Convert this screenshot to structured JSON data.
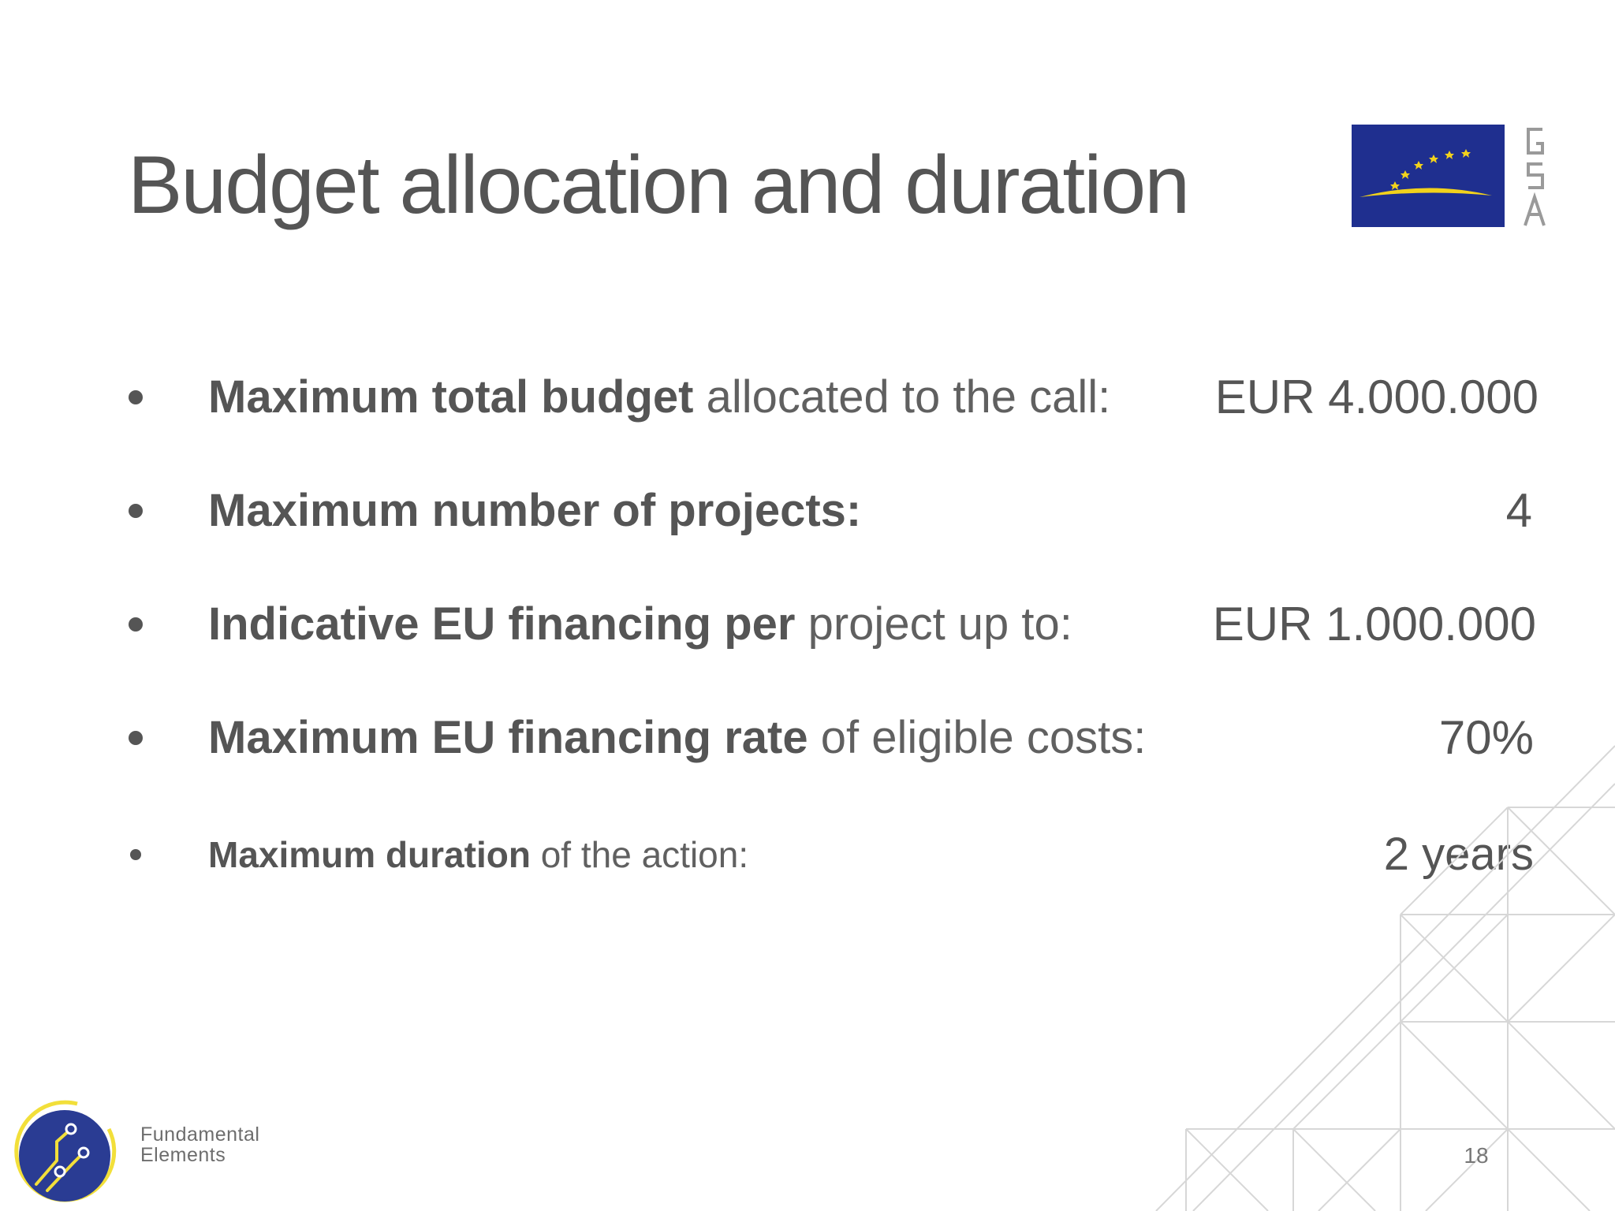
{
  "slide": {
    "title": "Budget allocation and duration",
    "page_number": "18"
  },
  "bullets": [
    {
      "label_bold": "Maximum total budget",
      "label_rest": " allocated to the call:",
      "value": "EUR 4.000.000"
    },
    {
      "label_bold": "Maximum number of projects:",
      "label_rest": "",
      "value": "4"
    },
    {
      "label_bold": "Indicative EU financing per",
      "label_rest": " project up to:",
      "value": "EUR 1.000.000"
    },
    {
      "label_bold": "Maximum EU financing rate",
      "label_rest": " of eligible costs:",
      "value": "70%"
    },
    {
      "label_bold": "Maximum duration",
      "label_rest": " of the action:",
      "value": "2 years"
    }
  ],
  "logos": {
    "gsa": {
      "icon": "gsa-logo-icon",
      "letters": [
        "G",
        "S",
        "A"
      ],
      "flag_color": "#1f2f8f",
      "star_color": "#f2d21c"
    },
    "fundamental_elements": {
      "icon": "fundamental-elements-logo-icon",
      "line1": "Fundamental",
      "line2": "Elements",
      "circle_color": "#2a3c93",
      "ring_color": "#f2df3a"
    }
  },
  "colors": {
    "text": "#555555",
    "decor_lines": "#d5d5d5"
  }
}
